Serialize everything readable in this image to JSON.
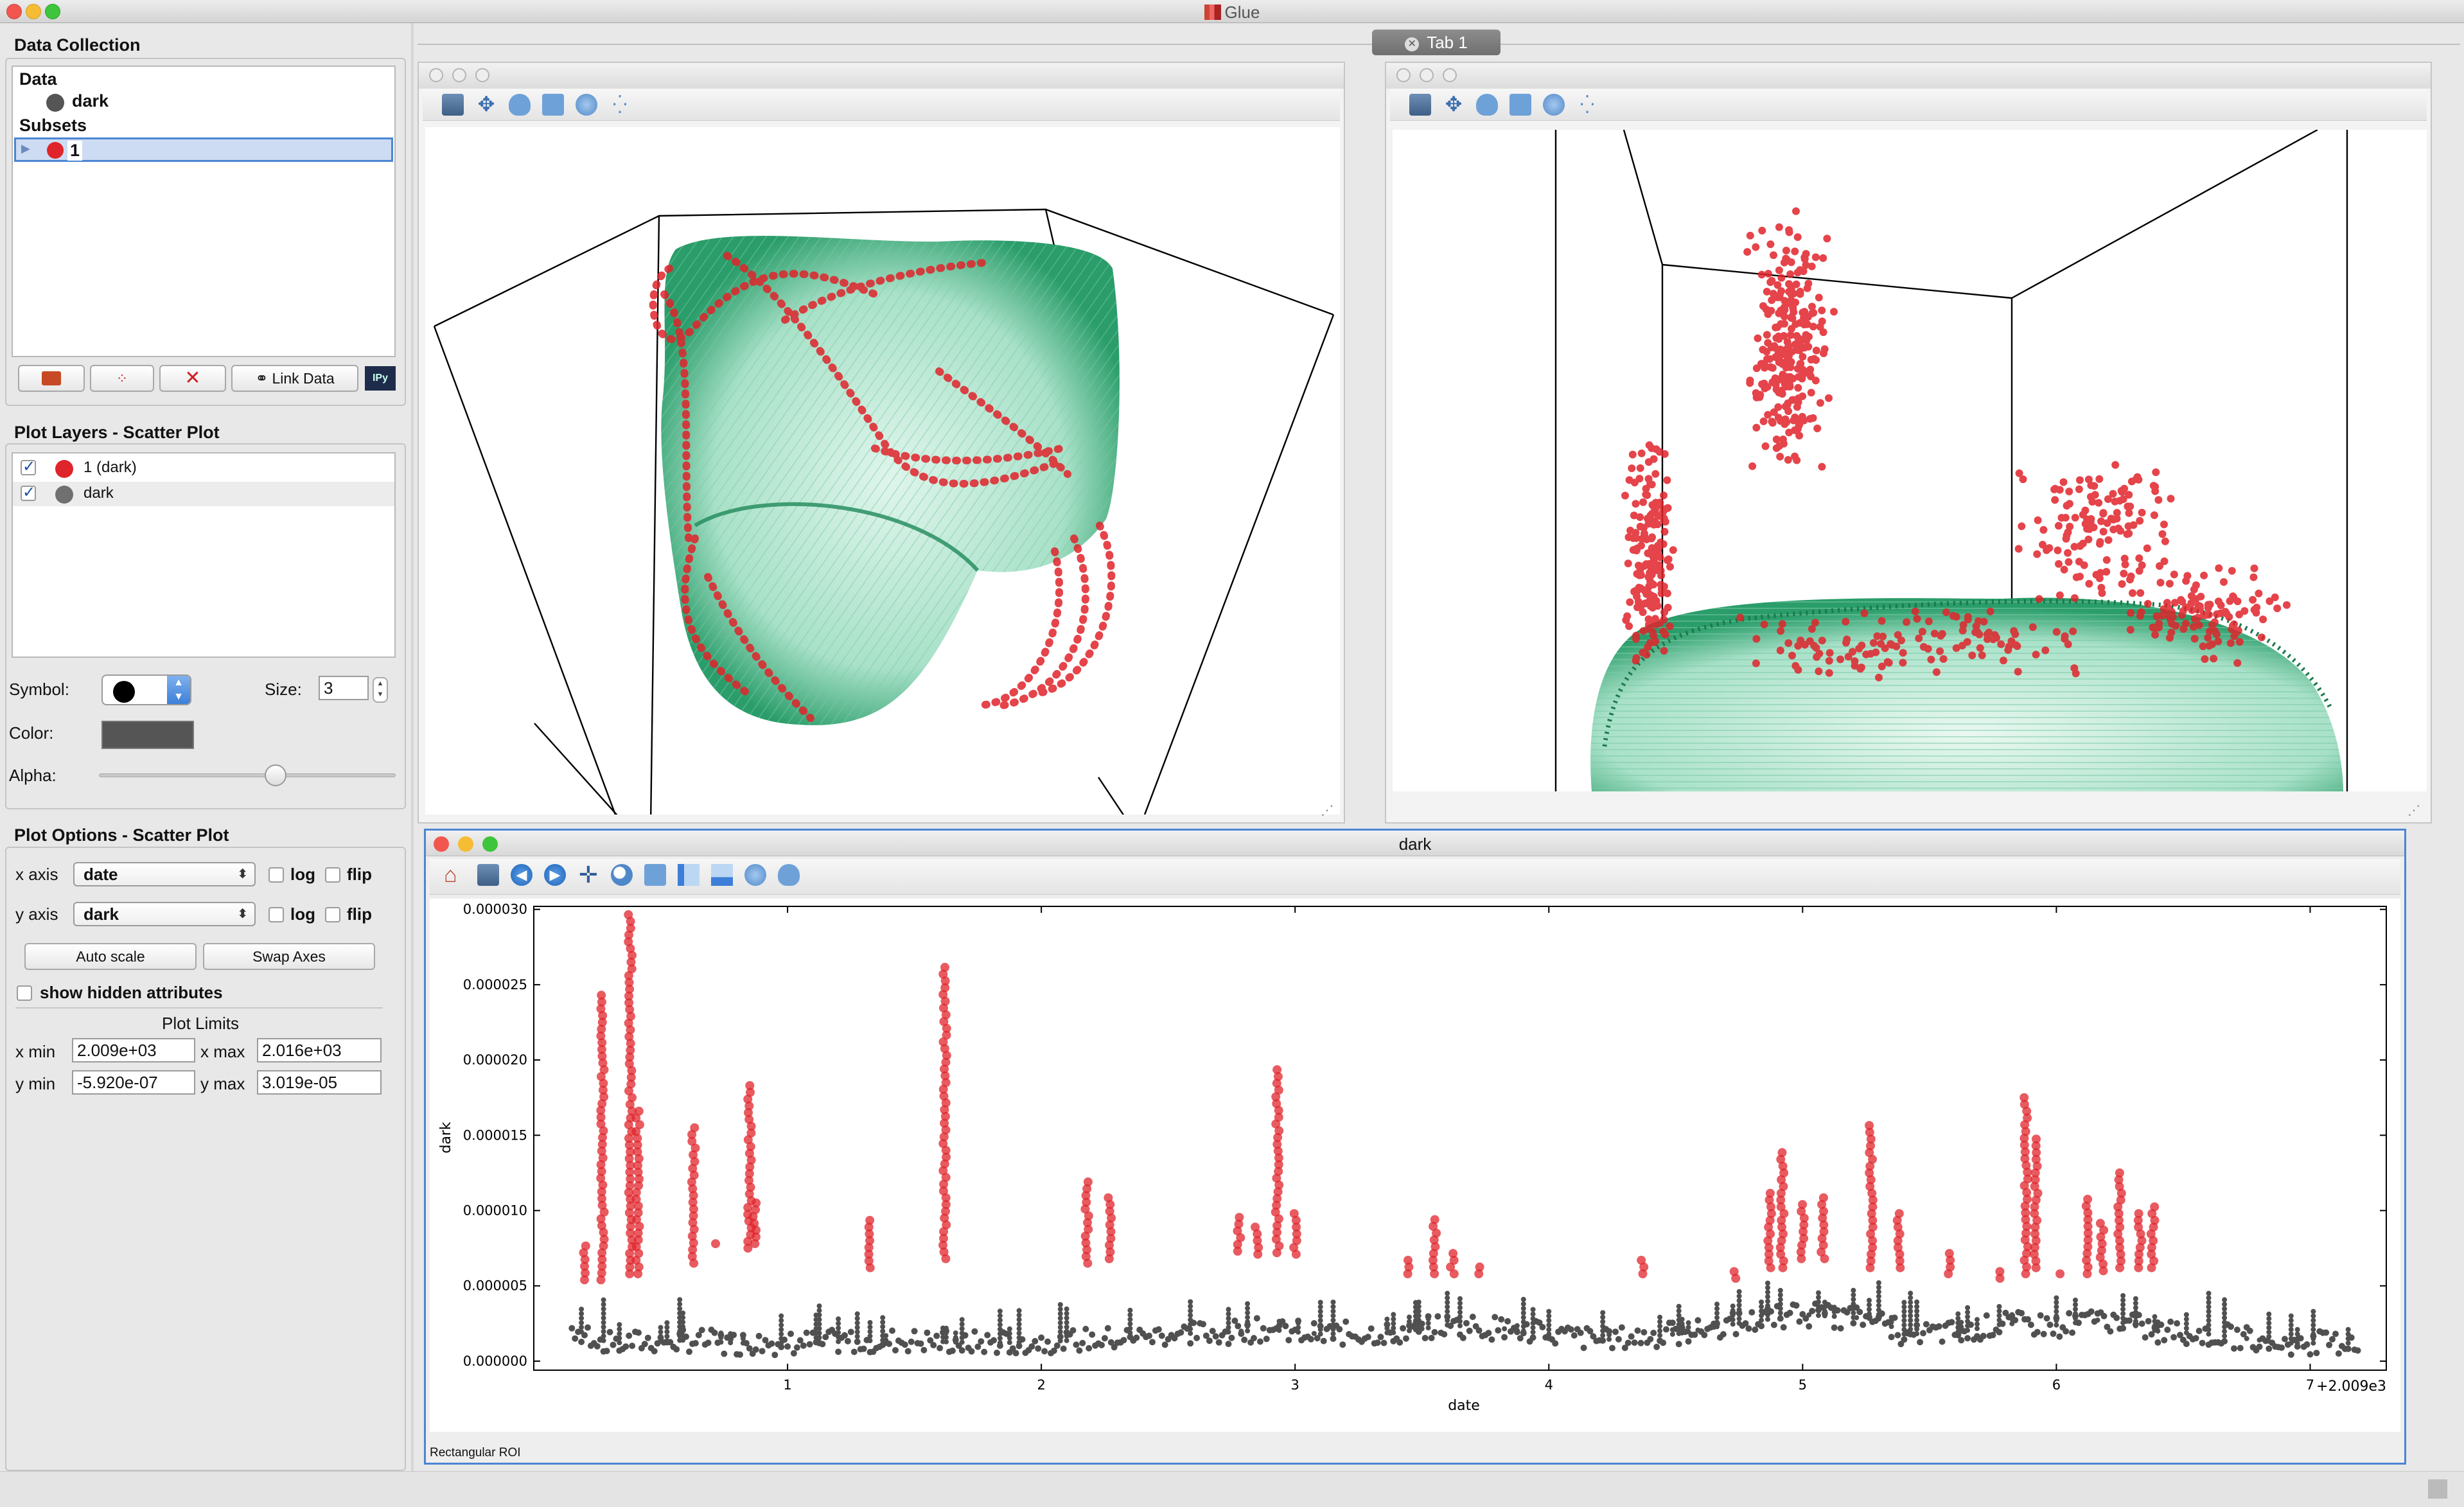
{
  "app": {
    "title": "Glue",
    "tab": "Tab 1"
  },
  "data_collection": {
    "group_title": "Data Collection",
    "data_header": "Data",
    "data_item": "dark",
    "subsets_header": "Subsets",
    "subset_item": "1",
    "link_button": "Link Data",
    "ipy_label": "IPy"
  },
  "plot_layers": {
    "group_title": "Plot Layers - Scatter Plot",
    "layers": [
      {
        "label": "1 (dark)",
        "color": "#e0242b",
        "checked": true
      },
      {
        "label": "dark",
        "color": "#707070",
        "checked": true
      }
    ],
    "symbol_label": "Symbol:",
    "size_label": "Size:",
    "size_value": "3",
    "color_label": "Color:",
    "alpha_label": "Alpha:",
    "alpha_value": 0.6,
    "layer_color": "#555555"
  },
  "plot_options": {
    "group_title": "Plot Options - Scatter Plot",
    "x_axis_label": "x axis",
    "x_axis_value": "date",
    "y_axis_label": "y axis",
    "y_axis_value": "dark",
    "log_label": "log",
    "flip_label": "flip",
    "auto_scale": "Auto scale",
    "swap_axes": "Swap Axes",
    "show_hidden": "show hidden attributes",
    "plot_limits": "Plot Limits",
    "xmin_label": "x min",
    "xmin_value": "2.009e+03",
    "xmax_label": "x max",
    "xmax_value": "2.016e+03",
    "ymin_label": "y min",
    "ymin_value": "-5.920e-07",
    "ymax_label": "y max",
    "ymax_value": "3.019e-05"
  },
  "scatter_window": {
    "title": "dark",
    "status": "Rectangular ROI",
    "offset_label": "+2.009e3"
  },
  "colors": {
    "subset": "#e0242b",
    "data": "#555555",
    "volume": "#2a9d6a",
    "selection_border": "#4a86d2"
  },
  "chart_data": {
    "type": "scatter",
    "title": "",
    "xlabel": "date",
    "ylabel": "dark",
    "xlim": [
      0.0,
      7.3
    ],
    "ylim": [
      -6e-07,
      3.02e-05
    ],
    "xticks": [
      1,
      2,
      3,
      4,
      5,
      6,
      7
    ],
    "yticks": [
      0.0,
      5e-06,
      1e-05,
      1.5e-05,
      2e-05,
      2.5e-05,
      3e-05
    ],
    "ytick_labels": [
      "0.000000",
      "0.000005",
      "0.000010",
      "0.000015",
      "0.000020",
      "0.000025",
      "0.000030"
    ],
    "grid": false,
    "series": [
      {
        "name": "dark",
        "color": "#505050",
        "baseline": [
          [
            0.15,
            2.2e-06
          ],
          [
            0.3,
            1.2e-06
          ],
          [
            0.6,
            1.4e-06
          ],
          [
            0.8,
            1.2e-06
          ],
          [
            1.0,
            1.2e-06
          ],
          [
            1.2,
            1.3e-06
          ],
          [
            1.4,
            1.4e-06
          ],
          [
            1.6,
            1.3e-06
          ],
          [
            1.8,
            1.2e-06
          ],
          [
            2.0,
            1.3e-06
          ],
          [
            2.3,
            1.5e-06
          ],
          [
            2.5,
            1.8e-06
          ],
          [
            2.7,
            1.9e-06
          ],
          [
            2.9,
            2.1e-06
          ],
          [
            3.1,
            1.8e-06
          ],
          [
            3.4,
            1.9e-06
          ],
          [
            3.6,
            2.4e-06
          ],
          [
            3.8,
            2.2e-06
          ],
          [
            4.0,
            1.8e-06
          ],
          [
            4.2,
            1.4e-06
          ],
          [
            4.5,
            1.8e-06
          ],
          [
            4.7,
            2.4e-06
          ],
          [
            5.0,
            3.1e-06
          ],
          [
            5.3,
            2.8e-06
          ],
          [
            5.4,
            1.8e-06
          ],
          [
            5.6,
            1.9e-06
          ],
          [
            5.8,
            2.5e-06
          ],
          [
            6.0,
            2.4e-06
          ],
          [
            6.2,
            2.8e-06
          ],
          [
            6.4,
            2e-06
          ],
          [
            6.6,
            1.8e-06
          ],
          [
            6.9,
            1.2e-06
          ],
          [
            7.2,
            1.2e-06
          ]
        ]
      },
      {
        "name": "1 (dark)",
        "color": "#e0242b",
        "columns": [
          [
            0.2,
            5.4e-06,
            7.9e-06
          ],
          [
            0.27,
            5.4e-06,
            2.47e-05
          ],
          [
            0.38,
            5.8e-06,
            2.97e-05
          ],
          [
            0.41,
            5.8e-06,
            1.7e-05
          ],
          [
            0.63,
            6.5e-06,
            1.55e-05
          ],
          [
            0.72,
            7.8e-06,
            7.8e-06
          ],
          [
            0.85,
            7.5e-06,
            1.83e-05
          ],
          [
            0.87,
            7.8e-06,
            1.08e-05
          ],
          [
            1.32,
            6.2e-06,
            9.7e-06
          ],
          [
            1.62,
            6.8e-06,
            2.64e-05
          ],
          [
            2.18,
            6.5e-06,
            1.23e-05
          ],
          [
            2.27,
            6.8e-06,
            1.09e-05
          ],
          [
            2.78,
            7.3e-06,
            9.8e-06
          ],
          [
            2.85,
            7.1e-06,
            9.3e-06
          ],
          [
            2.93,
            7.2e-06,
            1.95e-05
          ],
          [
            3.0,
            7.1e-06,
            9.8e-06
          ],
          [
            3.45,
            5.8e-06,
            6.8e-06
          ],
          [
            3.55,
            5.8e-06,
            9.5e-06
          ],
          [
            3.62,
            5.8e-06,
            7.3e-06
          ],
          [
            3.72,
            5.8e-06,
            6.3e-06
          ],
          [
            4.37,
            5.8e-06,
            7e-06
          ],
          [
            4.73,
            5.5e-06,
            6.3e-06
          ],
          [
            4.87,
            6.2e-06,
            1.15e-05
          ],
          [
            4.92,
            6.2e-06,
            1.4e-05
          ],
          [
            5.0,
            6.8e-06,
            1.05e-05
          ],
          [
            5.08,
            6.8e-06,
            1.1e-05
          ],
          [
            5.27,
            6.2e-06,
            1.57e-05
          ],
          [
            5.38,
            6.2e-06,
            9.8e-06
          ],
          [
            5.58,
            5.8e-06,
            7.2e-06
          ],
          [
            5.78,
            5.5e-06,
            6.2e-06
          ],
          [
            5.88,
            5.8e-06,
            1.76e-05
          ],
          [
            5.92,
            6.2e-06,
            1.48e-05
          ],
          [
            6.02,
            5.8e-06,
            6.2e-06
          ],
          [
            6.12,
            5.8e-06,
            1.08e-05
          ],
          [
            6.18,
            6e-06,
            9.3e-06
          ],
          [
            6.25,
            6.2e-06,
            1.28e-05
          ],
          [
            6.33,
            6.2e-06,
            9.8e-06
          ],
          [
            6.38,
            6.2e-06,
            1.06e-05
          ]
        ]
      }
    ]
  }
}
